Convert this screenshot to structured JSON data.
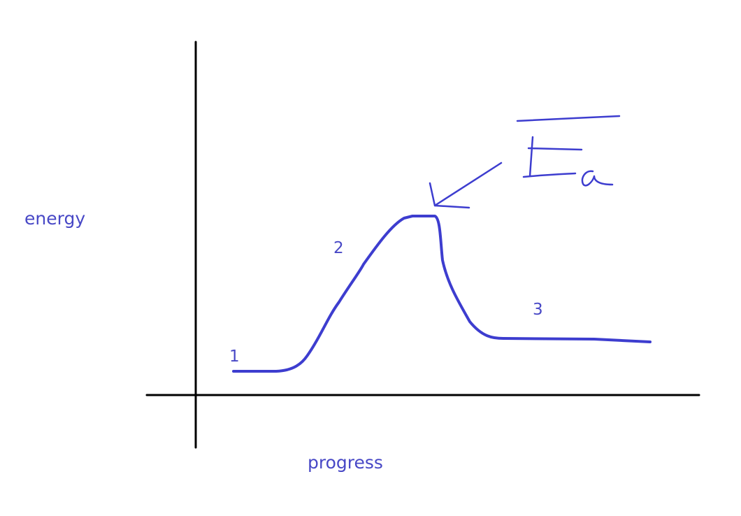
{
  "axes": {
    "y_label": "energy",
    "x_label": "progress"
  },
  "points": [
    {
      "label": "1"
    },
    {
      "label": "2"
    },
    {
      "label": "3"
    }
  ],
  "annotation": {
    "text": "Ea",
    "target": "peak of curve"
  },
  "colors": {
    "ink": "#3d3dcf",
    "label": "#4848c6",
    "axis": "#000000"
  }
}
